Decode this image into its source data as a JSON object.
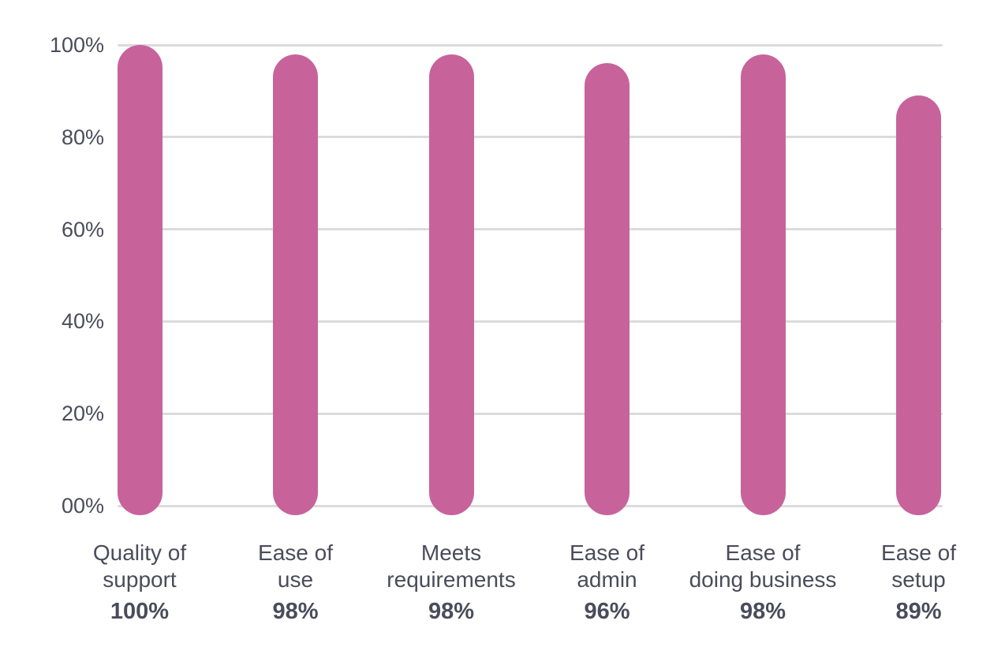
{
  "chart_data": {
    "type": "bar",
    "title": "",
    "xlabel": "",
    "ylabel": "",
    "categories": [
      "Quality of support",
      "Ease of use",
      "Meets requirements",
      "Ease of admin",
      "Ease of doing business",
      "Ease of setup"
    ],
    "category_lines": [
      [
        "Quality of",
        "support"
      ],
      [
        "Ease of",
        "use"
      ],
      [
        "Meets",
        "requirements"
      ],
      [
        "Ease of",
        "admin"
      ],
      [
        "Ease of",
        "doing business"
      ],
      [
        "Ease of",
        "setup"
      ]
    ],
    "values": [
      100,
      98,
      98,
      96,
      98,
      89
    ],
    "value_labels": [
      "100%",
      "98%",
      "98%",
      "96%",
      "98%",
      "89%"
    ],
    "y_ticks": [
      {
        "label": "100%",
        "value": 100
      },
      {
        "label": "80%",
        "value": 80
      },
      {
        "label": "60%",
        "value": 60
      },
      {
        "label": "40%",
        "value": 40
      },
      {
        "label": "20%",
        "value": 20
      },
      {
        "label": "00%",
        "value": 0
      }
    ],
    "ylim": [
      0,
      100
    ],
    "grid": true,
    "legend": false,
    "colors": {
      "bar": "#C7639A",
      "text": "#4B4B5C",
      "gridline": "#DBDBDB",
      "background": "#FFFFFF"
    }
  }
}
